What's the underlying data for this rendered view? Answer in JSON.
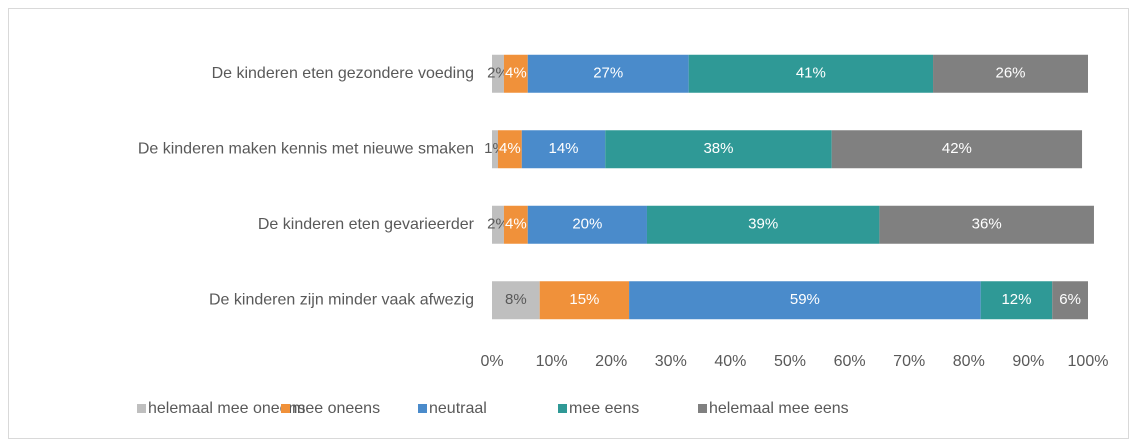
{
  "chart_data": {
    "type": "stacked-bar-horizontal",
    "categories": [
      "De kinderen eten gezondere voeding",
      "De kinderen maken kennis met nieuwe smaken",
      "De kinderen eten gevarieerder",
      "De kinderen zijn minder vaak afwezig"
    ],
    "series": [
      {
        "name": "helemaal mee oneens",
        "color": "#bfbfbf",
        "values": [
          2,
          1,
          2,
          8
        ],
        "value_labels": [
          "2%",
          "1%",
          "2%",
          "8%"
        ]
      },
      {
        "name": "mee oneens",
        "color": "#f0913a",
        "values": [
          4,
          4,
          4,
          15
        ],
        "value_labels": [
          "4%",
          "4%",
          "4%",
          "15%"
        ]
      },
      {
        "name": "neutraal",
        "color": "#4a8bcb",
        "values": [
          27,
          14,
          20,
          59
        ],
        "value_labels": [
          "27%",
          "14%",
          "20%",
          "59%"
        ]
      },
      {
        "name": "mee eens",
        "color": "#2f9996",
        "values": [
          41,
          38,
          39,
          12
        ],
        "value_labels": [
          "41%",
          "38%",
          "39%",
          "12%"
        ]
      },
      {
        "name": "helemaal mee eens",
        "color": "#808080",
        "values": [
          26,
          42,
          36,
          6
        ],
        "value_labels": [
          "26%",
          "42%",
          "36%",
          "6%"
        ]
      }
    ],
    "xlim": [
      0,
      100
    ],
    "xticks": [
      {
        "value": 0,
        "label": "0%"
      },
      {
        "value": 10,
        "label": "10%"
      },
      {
        "value": 20,
        "label": "20%"
      },
      {
        "value": 30,
        "label": "30%"
      },
      {
        "value": 40,
        "label": "40%"
      },
      {
        "value": 50,
        "label": "50%"
      },
      {
        "value": 60,
        "label": "60%"
      },
      {
        "value": 70,
        "label": "70%"
      },
      {
        "value": 80,
        "label": "80%"
      },
      {
        "value": 90,
        "label": "90%"
      },
      {
        "value": 100,
        "label": "100%"
      }
    ],
    "grid": false,
    "legend": "bottom"
  }
}
